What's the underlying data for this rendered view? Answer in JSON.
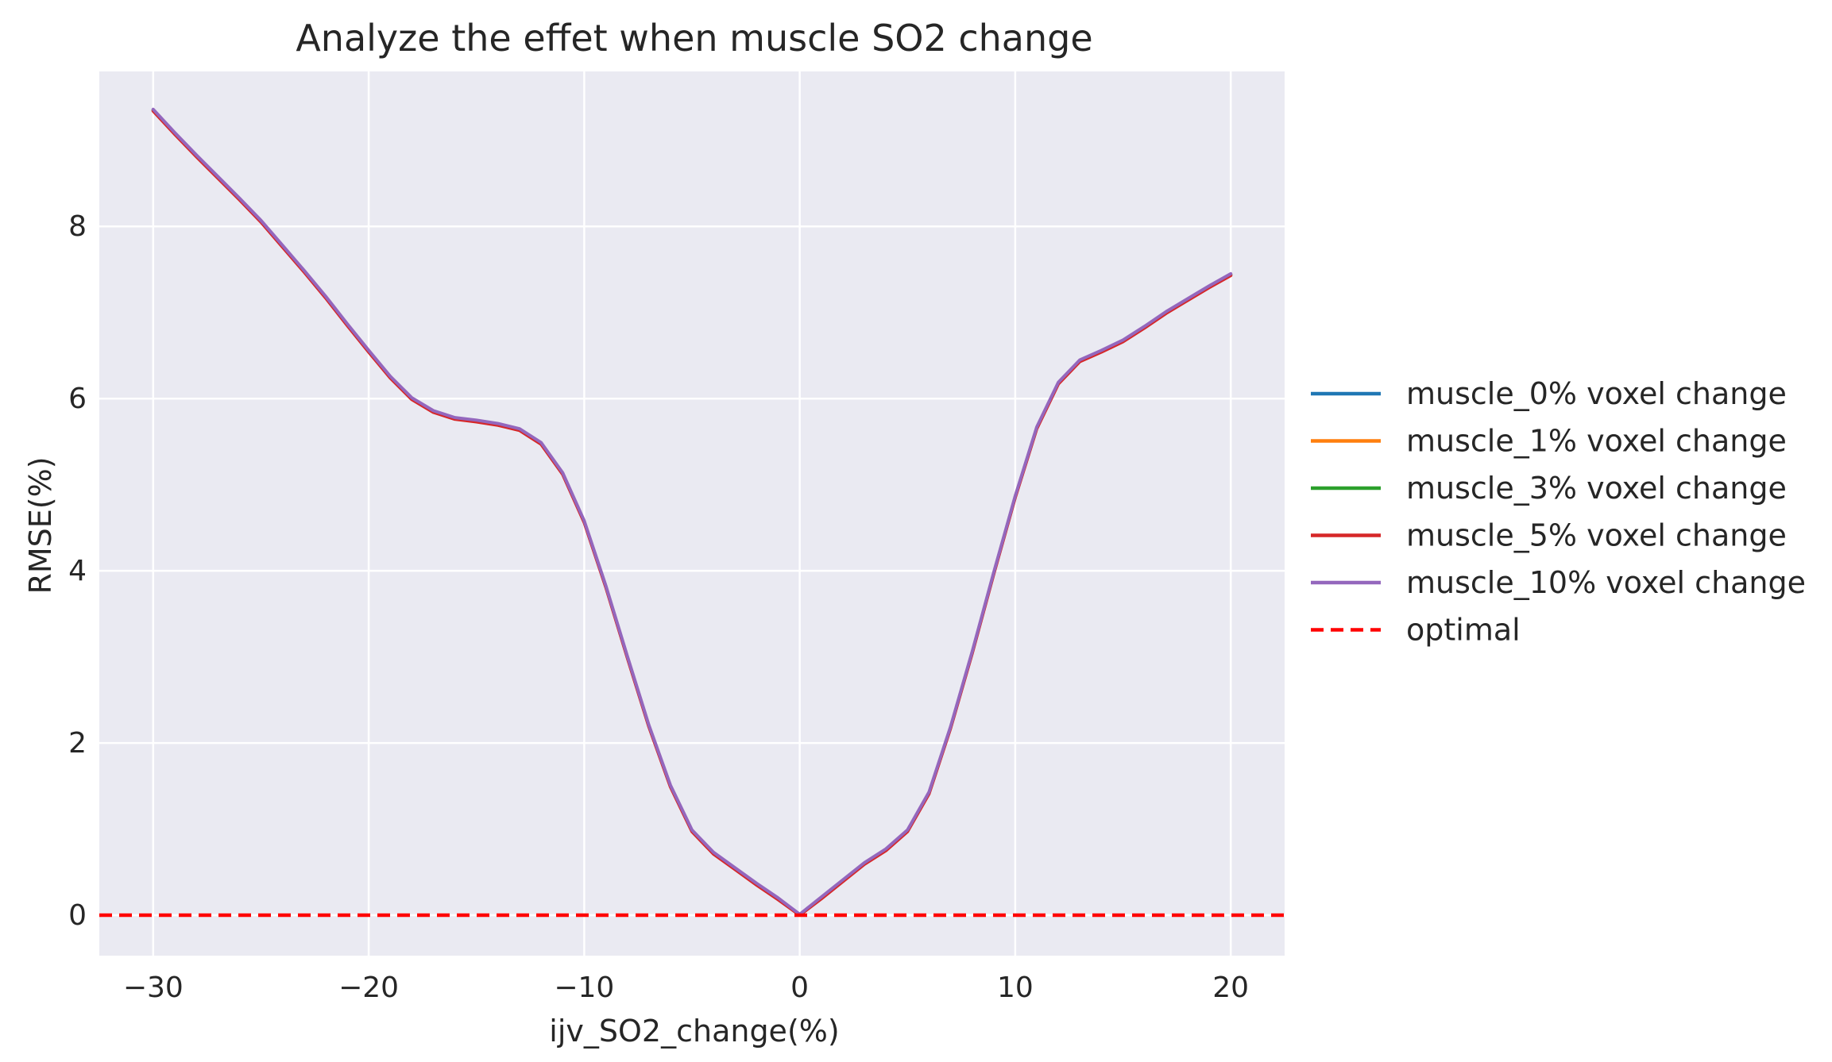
{
  "chart_data": {
    "type": "line",
    "title": "Analyze the effet when muscle SO2 change",
    "xlabel": "ijv_SO2_change(%)",
    "ylabel": "RMSE(%)",
    "xlim": [
      -32.5,
      22.5
    ],
    "ylim": [
      -0.47,
      9.8
    ],
    "xticks": [
      -30,
      -20,
      -10,
      0,
      10,
      20
    ],
    "xtick_labels": [
      "−30",
      "−20",
      "−10",
      "0",
      "10",
      "20"
    ],
    "yticks": [
      0,
      2,
      4,
      6,
      8
    ],
    "ytick_labels": [
      "0",
      "2",
      "4",
      "6",
      "8"
    ],
    "grid": true,
    "background": "#EAEAF2",
    "legend_position": "outside-right",
    "x": [
      -30,
      -29,
      -28,
      -27,
      -26,
      -25,
      -24,
      -23,
      -22,
      -21,
      -20,
      -19,
      -18,
      -17,
      -16,
      -15,
      -14,
      -13,
      -12,
      -11,
      -10,
      -9,
      -8,
      -7,
      -6,
      -5,
      -4,
      -3,
      -2,
      -1,
      0,
      1,
      2,
      3,
      4,
      5,
      6,
      7,
      8,
      9,
      10,
      11,
      12,
      13,
      14,
      15,
      16,
      17,
      18,
      19,
      20
    ],
    "series": [
      {
        "name": "muscle_0% voxel change",
        "color": "#1f77b4",
        "style": "solid",
        "values": [
          9.35,
          9.08,
          8.82,
          8.57,
          8.32,
          8.06,
          7.77,
          7.48,
          7.18,
          6.86,
          6.55,
          6.25,
          6.0,
          5.85,
          5.77,
          5.74,
          5.7,
          5.64,
          5.48,
          5.13,
          4.57,
          3.82,
          3.0,
          2.2,
          1.5,
          0.98,
          0.72,
          0.54,
          0.36,
          0.19,
          0.0,
          0.2,
          0.4,
          0.6,
          0.76,
          0.98,
          1.42,
          2.18,
          3.05,
          3.97,
          4.86,
          5.66,
          6.18,
          6.44,
          6.55,
          6.67,
          6.83,
          7.0,
          7.15,
          7.3,
          7.44
        ]
      },
      {
        "name": "muscle_1% voxel change",
        "color": "#ff7f0e",
        "style": "solid",
        "values": [
          9.35,
          9.08,
          8.82,
          8.57,
          8.32,
          8.06,
          7.77,
          7.48,
          7.18,
          6.86,
          6.55,
          6.25,
          6.0,
          5.85,
          5.77,
          5.74,
          5.7,
          5.64,
          5.48,
          5.13,
          4.57,
          3.82,
          3.0,
          2.2,
          1.5,
          0.98,
          0.72,
          0.54,
          0.36,
          0.19,
          0.0,
          0.2,
          0.4,
          0.6,
          0.76,
          0.98,
          1.42,
          2.18,
          3.05,
          3.97,
          4.86,
          5.66,
          6.18,
          6.44,
          6.55,
          6.67,
          6.83,
          7.0,
          7.15,
          7.3,
          7.44
        ]
      },
      {
        "name": "muscle_3% voxel change",
        "color": "#2ca02c",
        "style": "solid",
        "values": [
          9.35,
          9.08,
          8.82,
          8.57,
          8.32,
          8.06,
          7.77,
          7.48,
          7.18,
          6.86,
          6.55,
          6.25,
          6.0,
          5.85,
          5.77,
          5.74,
          5.7,
          5.64,
          5.48,
          5.13,
          4.57,
          3.82,
          3.0,
          2.2,
          1.5,
          0.98,
          0.72,
          0.54,
          0.36,
          0.19,
          0.0,
          0.2,
          0.4,
          0.6,
          0.76,
          0.98,
          1.42,
          2.18,
          3.05,
          3.97,
          4.86,
          5.66,
          6.18,
          6.44,
          6.55,
          6.67,
          6.83,
          7.0,
          7.15,
          7.3,
          7.44
        ]
      },
      {
        "name": "muscle_5% voxel change",
        "color": "#d62728",
        "style": "solid",
        "values": [
          9.34,
          9.07,
          8.81,
          8.56,
          8.31,
          8.05,
          7.76,
          7.47,
          7.17,
          6.85,
          6.54,
          6.24,
          5.99,
          5.84,
          5.76,
          5.73,
          5.69,
          5.63,
          5.47,
          5.12,
          4.56,
          3.81,
          2.99,
          2.19,
          1.49,
          0.97,
          0.71,
          0.53,
          0.35,
          0.18,
          0.0,
          0.19,
          0.39,
          0.59,
          0.75,
          0.97,
          1.41,
          2.17,
          3.04,
          3.96,
          4.85,
          5.65,
          6.17,
          6.43,
          6.54,
          6.66,
          6.82,
          6.99,
          7.14,
          7.29,
          7.43
        ]
      },
      {
        "name": "muscle_10% voxel change",
        "color": "#9467bd",
        "style": "solid",
        "values": [
          9.36,
          9.09,
          8.83,
          8.58,
          8.33,
          8.07,
          7.78,
          7.49,
          7.19,
          6.87,
          6.56,
          6.26,
          6.01,
          5.86,
          5.78,
          5.75,
          5.71,
          5.65,
          5.49,
          5.14,
          4.58,
          3.83,
          3.01,
          2.21,
          1.51,
          0.99,
          0.73,
          0.55,
          0.37,
          0.2,
          0.01,
          0.21,
          0.41,
          0.61,
          0.77,
          0.99,
          1.43,
          2.19,
          3.06,
          3.98,
          4.87,
          5.67,
          6.19,
          6.45,
          6.56,
          6.68,
          6.84,
          7.01,
          7.16,
          7.31,
          7.45
        ]
      },
      {
        "name": "optimal",
        "color": "#ff0000",
        "style": "dashed",
        "y_const": 0
      }
    ]
  }
}
